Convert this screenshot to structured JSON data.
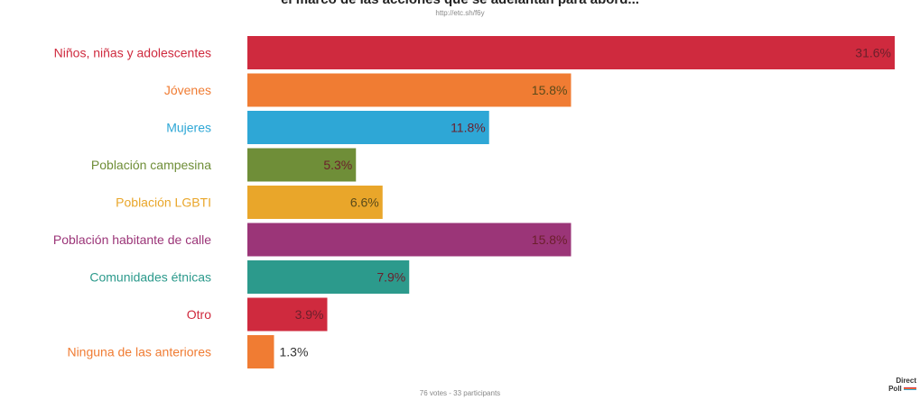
{
  "header": {
    "title": "el marco de las acciones que se adelantan para abord...",
    "subtitle": "http://etc.sh/f6y"
  },
  "footer": {
    "votes": "76 votes - 33 participants"
  },
  "logo": {
    "line1": "Direct",
    "line2": "Poll"
  },
  "chart_data": {
    "type": "bar",
    "orientation": "horizontal",
    "categories": [
      "Niños, niñas y adolescentes",
      "Jóvenes",
      "Mujeres",
      "Población campesina",
      "Población LGBTI",
      "Población habitante de calle",
      "Comunidades étnicas",
      "Otro",
      "Ninguna de las anteriores"
    ],
    "values": [
      31.6,
      15.8,
      11.8,
      5.3,
      6.6,
      15.8,
      7.9,
      3.9,
      1.3
    ],
    "value_labels": [
      "31.6%",
      "15.8%",
      "11.8%",
      "5.3%",
      "6.6%",
      "15.8%",
      "7.9%",
      "3.9%",
      "1.3%"
    ],
    "colors": [
      "#cf2a3e",
      "#f07c33",
      "#2ea7d6",
      "#6f8e38",
      "#e9a62a",
      "#9b3578",
      "#2c9a8c",
      "#cf2a3e",
      "#f07c33"
    ],
    "xlim": [
      0,
      31.6
    ],
    "grid": false,
    "legend": "none"
  }
}
